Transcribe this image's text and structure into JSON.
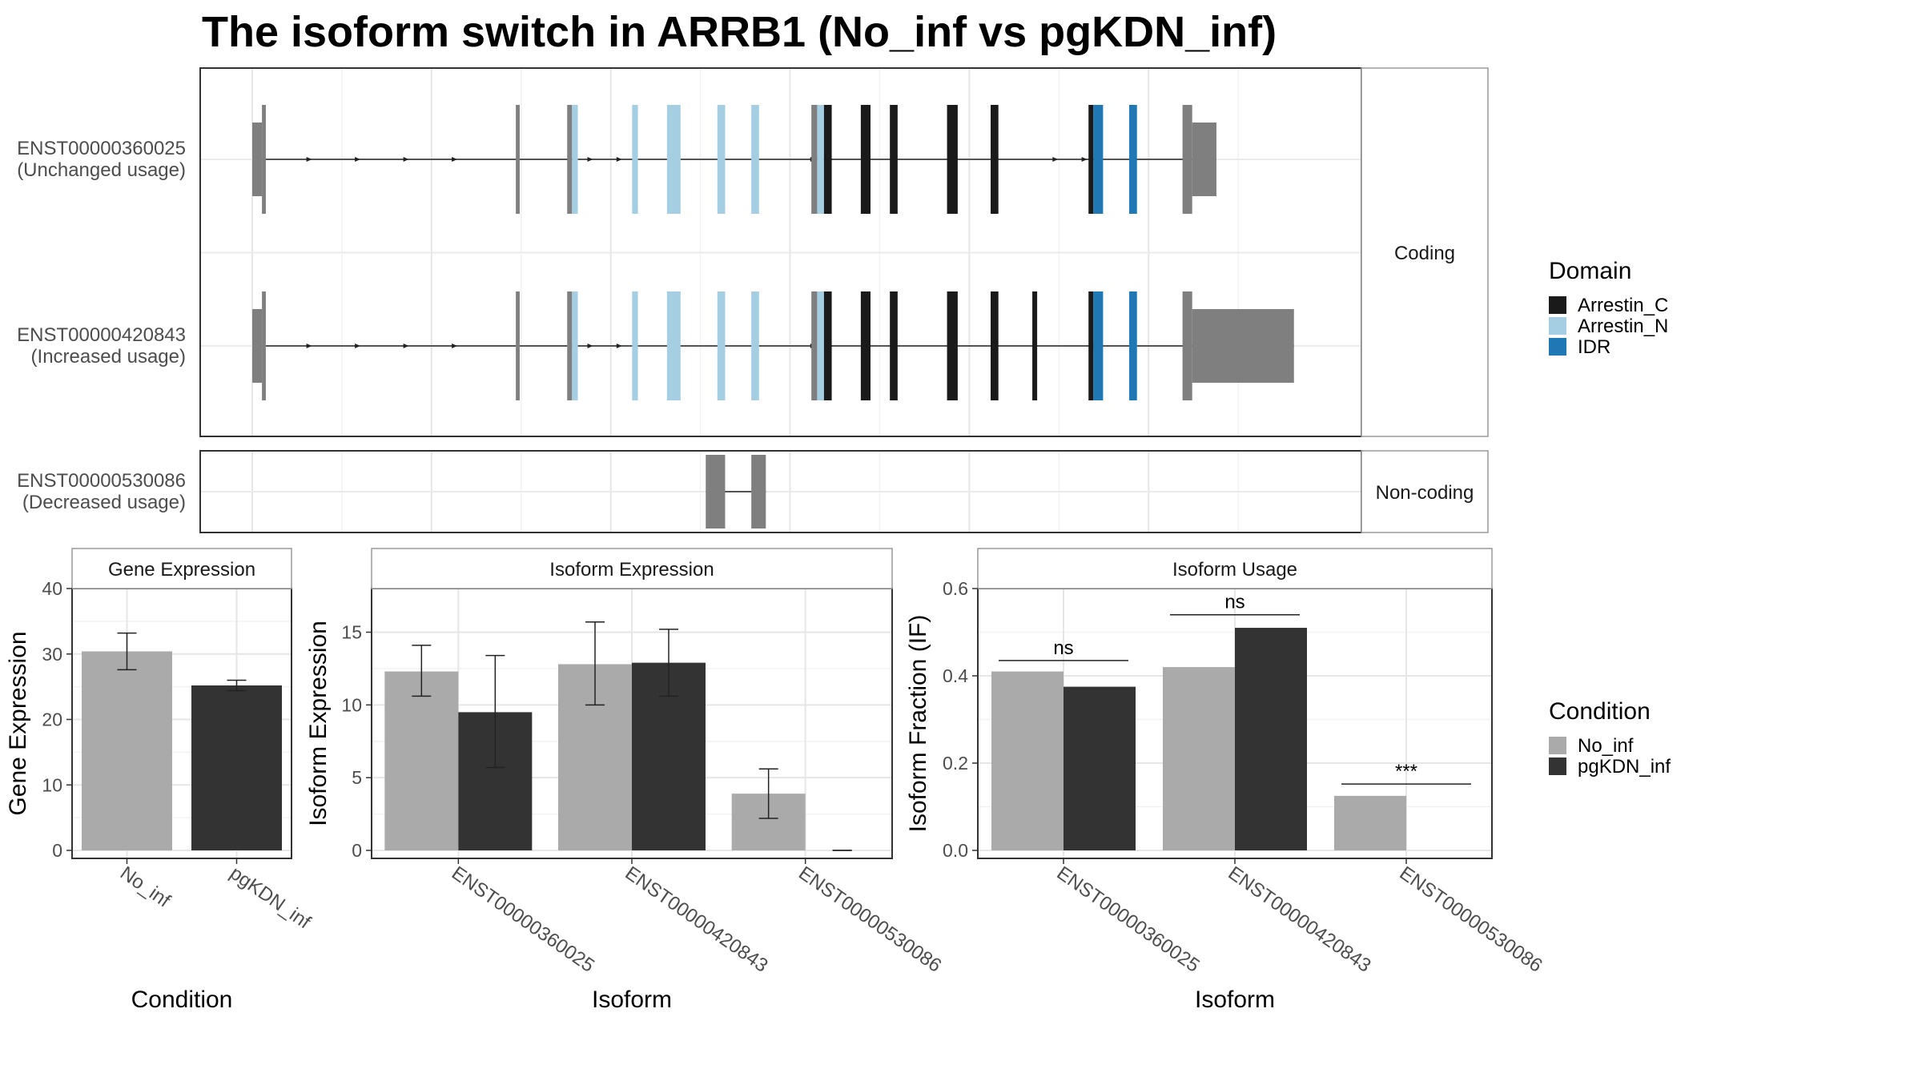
{
  "title": "The isoform switch in ARRB1 (No_inf vs pgKDN_inf)",
  "structure": {
    "x_range": [
      0,
      1000
    ],
    "facets": [
      "Coding",
      "Non-coding"
    ],
    "isoforms": [
      {
        "id": "ENST00000360025",
        "label": "(Unchanged usage)",
        "facet": "Coding",
        "exons": [
          [
            0,
            10,
            "utr"
          ],
          [
            10,
            14,
            "utr"
          ],
          [
            272,
            276,
            "utr"
          ],
          [
            325,
            330,
            "utr"
          ],
          [
            330,
            336,
            "Arrestin_N"
          ],
          [
            392,
            398,
            "Arrestin_N"
          ],
          [
            428,
            442,
            "Arrestin_N"
          ],
          [
            480,
            488,
            "Arrestin_N"
          ],
          [
            515,
            523,
            "Arrestin_N"
          ],
          [
            577,
            583,
            "utr"
          ],
          [
            583,
            590,
            "Arrestin_N"
          ],
          [
            590,
            598,
            "Arrestin_C"
          ],
          [
            628,
            638,
            "Arrestin_C"
          ],
          [
            658,
            666,
            "Arrestin_C"
          ],
          [
            717,
            728,
            "Arrestin_C"
          ],
          [
            762,
            770,
            "Arrestin_C"
          ],
          [
            863,
            868,
            "Arrestin_C"
          ],
          [
            868,
            878,
            "IDR"
          ],
          [
            905,
            913,
            "IDR"
          ],
          [
            960,
            970,
            "utr"
          ],
          [
            970,
            995,
            "utr"
          ]
        ],
        "arrows": [
          60,
          110,
          160,
          210,
          350,
          380,
          580,
          598,
          830,
          860
        ]
      },
      {
        "id": "ENST00000420843",
        "label": "(Increased usage)",
        "facet": "Coding",
        "exons": [
          [
            0,
            10,
            "utr"
          ],
          [
            10,
            14,
            "utr"
          ],
          [
            272,
            276,
            "utr"
          ],
          [
            325,
            330,
            "utr"
          ],
          [
            330,
            336,
            "Arrestin_N"
          ],
          [
            392,
            398,
            "Arrestin_N"
          ],
          [
            428,
            442,
            "Arrestin_N"
          ],
          [
            480,
            488,
            "Arrestin_N"
          ],
          [
            515,
            523,
            "Arrestin_N"
          ],
          [
            577,
            583,
            "utr"
          ],
          [
            583,
            590,
            "Arrestin_N"
          ],
          [
            590,
            598,
            "Arrestin_C"
          ],
          [
            628,
            638,
            "Arrestin_C"
          ],
          [
            658,
            666,
            "Arrestin_C"
          ],
          [
            717,
            728,
            "Arrestin_C"
          ],
          [
            762,
            770,
            "Arrestin_C"
          ],
          [
            805,
            810,
            "Arrestin_C"
          ],
          [
            863,
            868,
            "Arrestin_C"
          ],
          [
            868,
            878,
            "IDR"
          ],
          [
            905,
            913,
            "IDR"
          ],
          [
            960,
            970,
            "utr"
          ],
          [
            970,
            1075,
            "utr"
          ]
        ],
        "arrows": [
          60,
          110,
          160,
          210,
          350,
          380,
          580,
          598
        ]
      },
      {
        "id": "ENST00000530086",
        "label": "(Decreased usage)",
        "facet": "Non-coding",
        "exons": [
          [
            468,
            488,
            "utr"
          ],
          [
            515,
            530,
            "utr"
          ]
        ],
        "arrows": []
      }
    ],
    "domain_colors": {
      "Arrestin_C": "#1a1a1a",
      "Arrestin_N": "#a6cee3",
      "IDR": "#1f78b4",
      "utr": "#7f7f7f"
    }
  },
  "legends": {
    "domain": {
      "title": "Domain",
      "items": [
        {
          "label": "Arrestin_C",
          "color": "#1a1a1a"
        },
        {
          "label": "Arrestin_N",
          "color": "#a6cee3"
        },
        {
          "label": "IDR",
          "color": "#1f78b4"
        }
      ]
    },
    "condition": {
      "title": "Condition",
      "items": [
        {
          "label": "No_inf",
          "color": "#aaaaaa"
        },
        {
          "label": "pgKDN_inf",
          "color": "#333333"
        }
      ]
    }
  },
  "chart_data": [
    {
      "type": "bar",
      "title": "Gene Expression",
      "xlabel": "Condition",
      "ylabel": "Gene Expression",
      "ylim": [
        0,
        40
      ],
      "yticks": [
        0,
        10,
        20,
        30,
        40
      ],
      "categories": [
        "No_inf",
        "pgKDN_inf"
      ],
      "values": [
        30.4,
        25.2
      ],
      "err_low": [
        27.6,
        24.4
      ],
      "err_high": [
        33.2,
        26.0
      ],
      "colors": [
        "#aaaaaa",
        "#333333"
      ]
    },
    {
      "type": "bar",
      "title": "Isoform Expression",
      "xlabel": "Isoform",
      "ylabel": "Isoform Expression",
      "ylim": [
        0,
        18
      ],
      "yticks": [
        0,
        5,
        10,
        15
      ],
      "categories": [
        "ENST00000360025",
        "ENST00000420843",
        "ENST00000530086"
      ],
      "series": [
        {
          "name": "No_inf",
          "values": [
            12.3,
            12.8,
            3.9
          ],
          "err_low": [
            10.6,
            10.0,
            2.2
          ],
          "err_high": [
            14.1,
            15.7,
            5.6
          ]
        },
        {
          "name": "pgKDN_inf",
          "values": [
            9.5,
            12.9,
            0.0
          ],
          "err_low": [
            5.7,
            10.6,
            0.0
          ],
          "err_high": [
            13.4,
            15.2,
            0.0
          ]
        }
      ]
    },
    {
      "type": "bar",
      "title": "Isoform Usage",
      "xlabel": "Isoform",
      "ylabel": "Isoform Fraction (IF)",
      "ylim": [
        0,
        0.6
      ],
      "yticks": [
        0.0,
        0.2,
        0.4,
        0.6
      ],
      "categories": [
        "ENST00000360025",
        "ENST00000420843",
        "ENST00000530086"
      ],
      "series": [
        {
          "name": "No_inf",
          "values": [
            0.41,
            0.42,
            0.125
          ]
        },
        {
          "name": "pgKDN_inf",
          "values": [
            0.375,
            0.51,
            0.0
          ]
        }
      ],
      "annotations": [
        {
          "category": 0,
          "text": "ns",
          "y": 0.435
        },
        {
          "category": 1,
          "text": "ns",
          "y": 0.54
        },
        {
          "category": 2,
          "text": "***",
          "y": 0.152
        }
      ]
    }
  ]
}
